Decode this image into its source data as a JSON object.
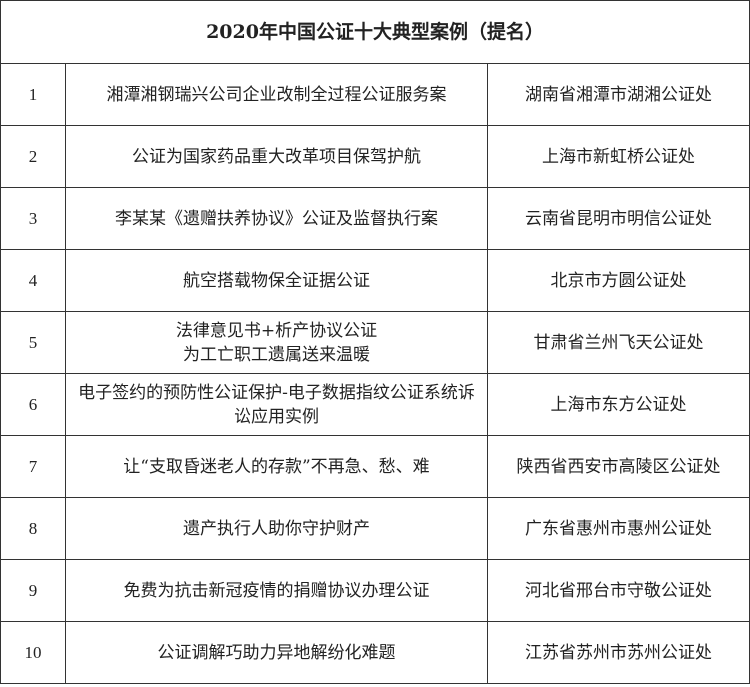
{
  "title": "2020年中国公证十大典型案例（提名）",
  "rows": [
    {
      "no": "1",
      "case": "湘潭湘钢瑞兴公司企业改制全过程公证服务案",
      "office": "湖南省湘潭市湖湘公证处"
    },
    {
      "no": "2",
      "case": "公证为国家药品重大改革项目保驾护航",
      "office": "上海市新虹桥公证处"
    },
    {
      "no": "3",
      "case": "李某某《遗赠扶养协议》公证及监督执行案",
      "office": "云南省昆明市明信公证处"
    },
    {
      "no": "4",
      "case": "航空搭载物保全证据公证",
      "office": "北京市方圆公证处"
    },
    {
      "no": "5",
      "case": "法律意见书+析产协议公证\n为工亡职工遗属送来温暖",
      "office": "甘肃省兰州飞天公证处"
    },
    {
      "no": "6",
      "case": "电子签约的预防性公证保护-电子数据指纹公证系统诉讼应用实例",
      "office": "上海市东方公证处"
    },
    {
      "no": "7",
      "case": "让“支取昏迷老人的存款”不再急、愁、难",
      "office": "陕西省西安市高陵区公证处"
    },
    {
      "no": "8",
      "case": "遗产执行人助你守护财产",
      "office": "广东省惠州市惠州公证处"
    },
    {
      "no": "9",
      "case": "免费为抗击新冠疫情的捐赠协议办理公证",
      "office": "河北省邢台市守敬公证处"
    },
    {
      "no": "10",
      "case": "公证调解巧助力异地解纷化难题",
      "office": "江苏省苏州市苏州公证处"
    }
  ]
}
